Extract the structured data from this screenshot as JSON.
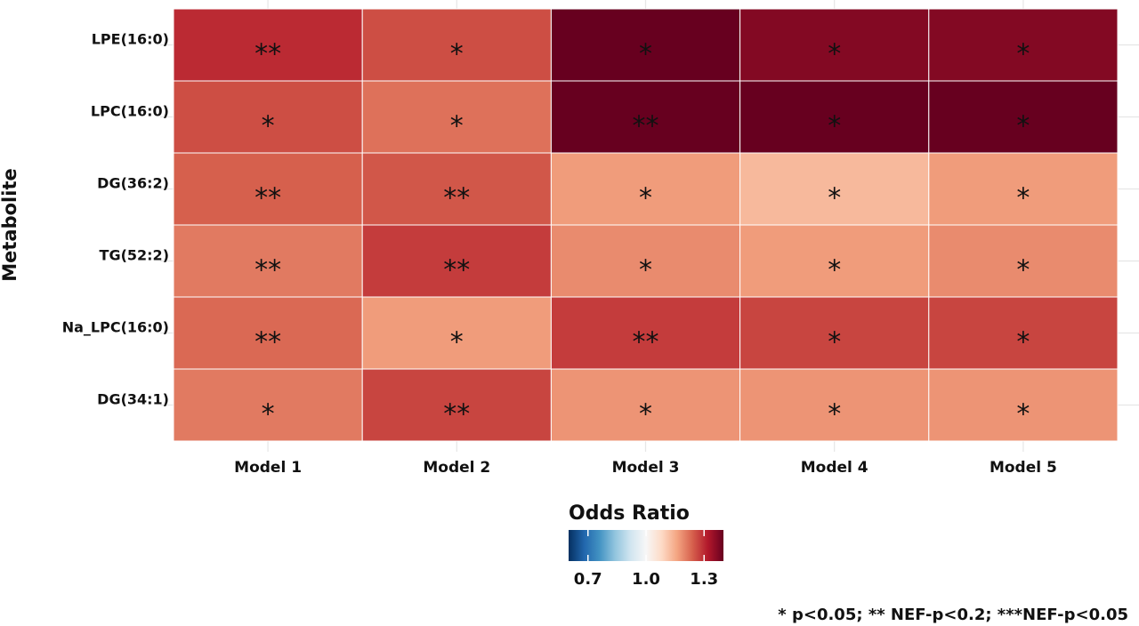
{
  "chart_data": {
    "type": "heatmap",
    "ylabel": "Metabolite",
    "xlabel": "",
    "x_categories": [
      "Model 1",
      "Model 2",
      "Model 3",
      "Model 4",
      "Model 5"
    ],
    "y_categories": [
      "LPE(16:0)",
      "LPC(16:0)",
      "DG(36:2)",
      "TG(52:2)",
      "Na_LPC(16:0)",
      "DG(34:1)"
    ],
    "values": [
      [
        1.3,
        1.26,
        1.4,
        1.37,
        1.37
      ],
      [
        1.26,
        1.22,
        1.48,
        1.45,
        1.48
      ],
      [
        1.24,
        1.25,
        1.17,
        1.13,
        1.17
      ],
      [
        1.21,
        1.28,
        1.19,
        1.17,
        1.19
      ],
      [
        1.23,
        1.17,
        1.28,
        1.27,
        1.27
      ],
      [
        1.21,
        1.27,
        1.18,
        1.18,
        1.18
      ]
    ],
    "annotations": [
      [
        "**",
        "*",
        "*",
        "*",
        "*"
      ],
      [
        "*",
        "*",
        "**",
        "*",
        "*"
      ],
      [
        "**",
        "**",
        "*",
        "*",
        "*"
      ],
      [
        "**",
        "**",
        "*",
        "*",
        "*"
      ],
      [
        "**",
        "*",
        "**",
        "*",
        "*"
      ],
      [
        "*",
        "**",
        "*",
        "*",
        "*"
      ]
    ],
    "legend": {
      "title": "Odds Ratio",
      "range": [
        0.6,
        1.4
      ],
      "ticks": [
        0.7,
        1.0,
        1.3
      ],
      "tick_labels": [
        "0.7",
        "1.0",
        "1.3"
      ],
      "placement": "bottom-center"
    },
    "colors": {
      "low": "#053061",
      "mid": "#f7f7f7",
      "high": "#67001f"
    },
    "footnote": "* p<0.05; ** NEF-p<0.2; ***NEF-p<0.05",
    "grid": true
  }
}
